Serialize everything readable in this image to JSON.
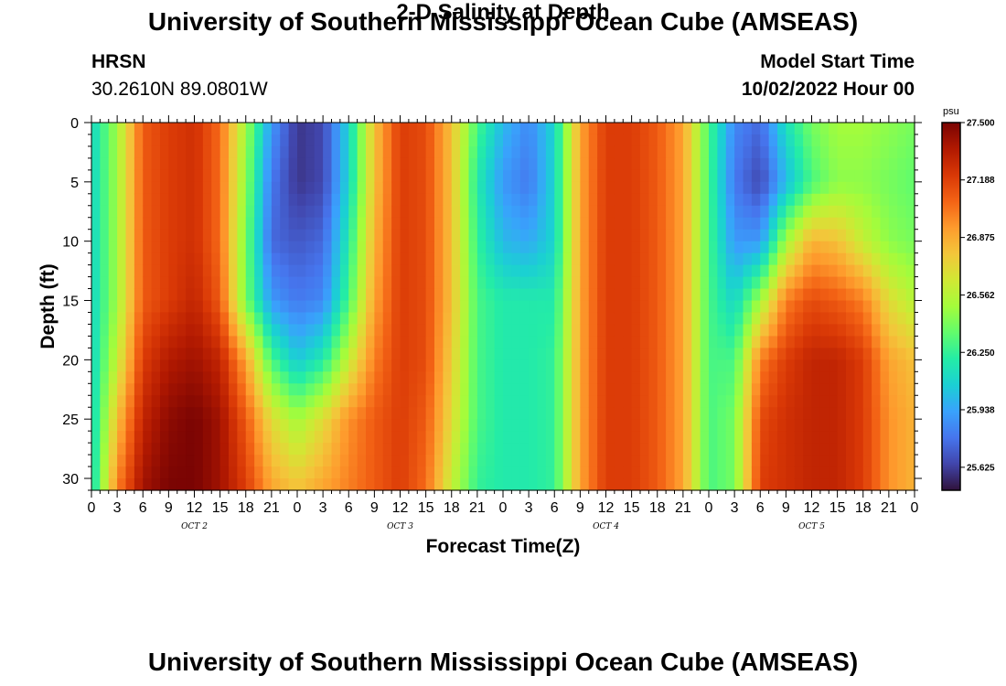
{
  "page": {
    "title": "University of Southern Mississippi Ocean Cube (AMSEAS)",
    "title_repeat": "University of Southern Mississippi Ocean Cube (AMSEAS)",
    "station": "HRSN",
    "coords": "30.2610N  89.0801W",
    "subtitle": "2-D Salinity at Depth",
    "model_label": "Model Start Time",
    "model_time": "10/02/2022 Hour 00"
  },
  "colors": {
    "colormap": [
      "#30123b",
      "#4145ab",
      "#4675ed",
      "#39a2fc",
      "#1bcfd4",
      "#24eca6",
      "#61fc6c",
      "#a4fc3b",
      "#d1e834",
      "#f3c63a",
      "#fe9b2d",
      "#f36315",
      "#d93806",
      "#b11901",
      "#7a0403"
    ]
  },
  "chart_data": {
    "type": "heatmap",
    "xlabel": "Forecast Time(Z)",
    "ylabel": "Depth (ft)",
    "x_unit": "hours since 10/02/2022 00Z",
    "xlim": [
      0,
      96
    ],
    "ylim": [
      0,
      31
    ],
    "y_inverted": true,
    "x_tick_labels": [
      "0",
      "3",
      "6",
      "9",
      "12",
      "15",
      "18",
      "21",
      "0",
      "3",
      "6",
      "9",
      "12",
      "15",
      "18",
      "21",
      "0",
      "3",
      "6",
      "9",
      "12",
      "15",
      "18",
      "21",
      "0",
      "3",
      "6",
      "9",
      "12",
      "15",
      "18",
      "21",
      "0"
    ],
    "y_ticks": [
      0,
      5,
      10,
      15,
      20,
      25,
      30
    ],
    "day_labels": [
      {
        "text": "OCT 2",
        "hour": 12
      },
      {
        "text": "OCT 3",
        "hour": 36
      },
      {
        "text": "OCT 4",
        "hour": 60
      },
      {
        "text": "OCT 5",
        "hour": 84
      }
    ],
    "colorbar": {
      "unit": "psu",
      "min": 25.5,
      "max": 27.5,
      "tick_labels": [
        "27.500",
        "27.188",
        "26.875",
        "26.562",
        "26.250",
        "25.938",
        "25.625"
      ]
    },
    "grid": {
      "times": [
        0,
        3,
        6,
        9,
        12,
        15,
        18,
        21,
        24,
        27,
        30,
        33,
        36,
        39,
        42,
        45,
        48,
        51,
        54,
        57,
        60,
        63,
        66,
        69,
        72,
        75,
        78,
        81,
        84,
        87,
        90,
        93,
        96
      ],
      "depths": [
        0,
        5,
        10,
        15,
        20,
        25,
        31
      ],
      "values": [
        [
          26.1,
          26.1,
          26.1,
          26.1,
          26.1,
          26.1,
          26.1
        ],
        [
          26.5,
          26.5,
          26.5,
          26.5,
          26.6,
          26.8,
          27.0
        ],
        [
          27.1,
          27.1,
          27.1,
          27.1,
          27.2,
          27.3,
          27.4
        ],
        [
          27.2,
          27.2,
          27.2,
          27.2,
          27.35,
          27.45,
          27.5
        ],
        [
          27.25,
          27.25,
          27.25,
          27.3,
          27.4,
          27.5,
          27.5
        ],
        [
          27.05,
          27.05,
          27.05,
          27.1,
          27.3,
          27.4,
          27.4
        ],
        [
          26.5,
          26.45,
          26.4,
          26.4,
          26.9,
          27.1,
          27.2
        ],
        [
          25.9,
          25.8,
          25.75,
          25.9,
          26.3,
          26.7,
          26.9
        ],
        [
          25.6,
          25.6,
          25.7,
          25.8,
          26.05,
          26.5,
          26.8
        ],
        [
          25.65,
          25.65,
          25.75,
          25.85,
          26.2,
          26.7,
          26.9
        ],
        [
          26.1,
          26.1,
          26.2,
          26.3,
          26.6,
          26.95,
          27.0
        ],
        [
          26.8,
          26.8,
          26.85,
          26.9,
          27.0,
          27.1,
          27.1
        ],
        [
          27.2,
          27.2,
          27.2,
          27.2,
          27.2,
          27.2,
          27.2
        ],
        [
          27.15,
          27.15,
          27.15,
          27.15,
          27.15,
          27.1,
          27.05
        ],
        [
          26.8,
          26.8,
          26.8,
          26.8,
          26.75,
          26.7,
          26.6
        ],
        [
          26.3,
          26.2,
          26.25,
          26.3,
          26.3,
          26.3,
          26.25
        ],
        [
          26.0,
          25.9,
          26.0,
          26.2,
          26.2,
          26.2,
          26.2
        ],
        [
          25.85,
          25.8,
          25.95,
          26.2,
          26.2,
          26.2,
          26.2
        ],
        [
          26.1,
          26.1,
          26.1,
          26.2,
          26.25,
          26.25,
          26.25
        ],
        [
          26.9,
          26.9,
          26.9,
          26.9,
          26.9,
          26.9,
          26.9
        ],
        [
          27.2,
          27.2,
          27.2,
          27.2,
          27.2,
          27.2,
          27.2
        ],
        [
          27.2,
          27.2,
          27.2,
          27.2,
          27.2,
          27.2,
          27.2
        ],
        [
          27.1,
          27.1,
          27.1,
          27.1,
          27.1,
          27.1,
          27.1
        ],
        [
          26.9,
          26.9,
          26.9,
          26.9,
          26.9,
          26.9,
          26.9
        ],
        [
          26.3,
          26.3,
          26.3,
          26.3,
          26.3,
          26.3,
          26.3
        ],
        [
          25.85,
          25.8,
          25.9,
          26.1,
          26.3,
          26.4,
          26.4
        ],
        [
          25.75,
          25.65,
          25.9,
          26.5,
          27.0,
          27.15,
          27.2
        ],
        [
          26.15,
          26.0,
          26.5,
          27.0,
          27.2,
          27.25,
          27.25
        ],
        [
          26.4,
          26.3,
          26.85,
          27.15,
          27.3,
          27.3,
          27.3
        ],
        [
          26.5,
          26.45,
          26.8,
          27.1,
          27.3,
          27.3,
          27.3
        ],
        [
          26.5,
          26.45,
          26.6,
          27.0,
          27.2,
          27.2,
          27.2
        ],
        [
          26.45,
          26.4,
          26.45,
          26.7,
          26.9,
          26.95,
          26.95
        ],
        [
          26.4,
          26.35,
          26.4,
          26.55,
          26.8,
          26.85,
          26.85
        ]
      ]
    }
  }
}
